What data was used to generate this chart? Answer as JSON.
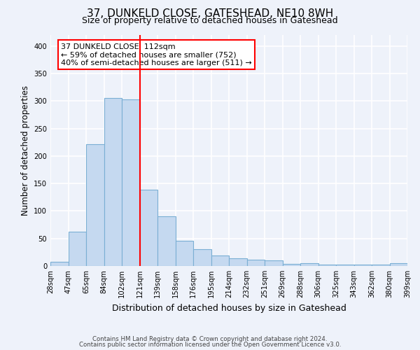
{
  "title": "37, DUNKELD CLOSE, GATESHEAD, NE10 8WH",
  "subtitle": "Size of property relative to detached houses in Gateshead",
  "xlabel": "Distribution of detached houses by size in Gateshead",
  "ylabel": "Number of detached properties",
  "bar_color": "#c5d9f0",
  "bar_edge_color": "#7bafd4",
  "vline_color": "red",
  "annotation_line1": "37 DUNKELD CLOSE: 112sqm",
  "annotation_line2": "← 59% of detached houses are smaller (752)",
  "annotation_line3": "40% of semi-detached houses are larger (511) →",
  "values": [
    8,
    63,
    221,
    305,
    303,
    139,
    90,
    46,
    30,
    19,
    14,
    11,
    10,
    4,
    5,
    3,
    2,
    3,
    2,
    5
  ],
  "tick_labels": [
    "28sqm",
    "47sqm",
    "65sqm",
    "84sqm",
    "102sqm",
    "121sqm",
    "139sqm",
    "158sqm",
    "176sqm",
    "195sqm",
    "214sqm",
    "232sqm",
    "251sqm",
    "269sqm",
    "288sqm",
    "306sqm",
    "325sqm",
    "343sqm",
    "362sqm",
    "380sqm",
    "399sqm"
  ],
  "ylim": [
    0,
    420
  ],
  "vline_pos": 5,
  "footer1": "Contains HM Land Registry data © Crown copyright and database right 2024.",
  "footer2": "Contains public sector information licensed under the Open Government Licence v3.0.",
  "background_color": "#eef2fa",
  "grid_color": "#ffffff"
}
